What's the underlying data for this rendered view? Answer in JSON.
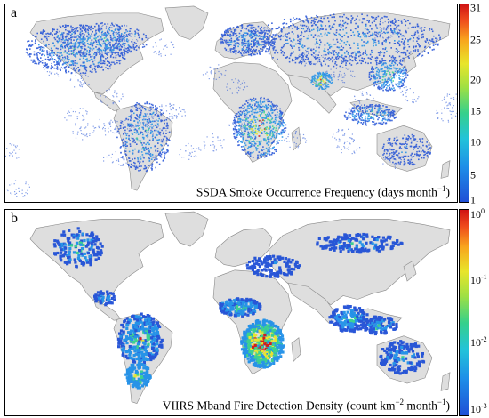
{
  "panels": [
    {
      "letter": "a",
      "caption": {
        "main": "SSDA Smoke Occurrence Frequency (days month",
        "exp": "−1",
        "tail": ")"
      },
      "colorbar": {
        "scale": "linear",
        "ticks": [
          "31",
          "25",
          "20",
          "15",
          "10",
          "5",
          "1"
        ],
        "range": [
          1,
          31
        ]
      }
    },
    {
      "letter": "b",
      "caption": {
        "main": "VIIRS Mband Fire Detection Density (count km",
        "exp": "−2",
        "mid": " month",
        "exp2": "−1",
        "tail": ")"
      },
      "colorbar": {
        "scale": "log",
        "ticks": [
          {
            "base": "10",
            "exp": "0"
          },
          {
            "base": "10",
            "exp": "-1"
          },
          {
            "base": "10",
            "exp": "-2"
          },
          {
            "base": "10",
            "exp": "-3"
          }
        ],
        "range": [
          0.001,
          1
        ]
      }
    }
  ],
  "colors": {
    "land": "#dedede",
    "coast": "#8a8a8a",
    "low": "#1f4fd6",
    "mid": "#35d08c",
    "high": "#e8e52a",
    "max": "#d01414"
  }
}
